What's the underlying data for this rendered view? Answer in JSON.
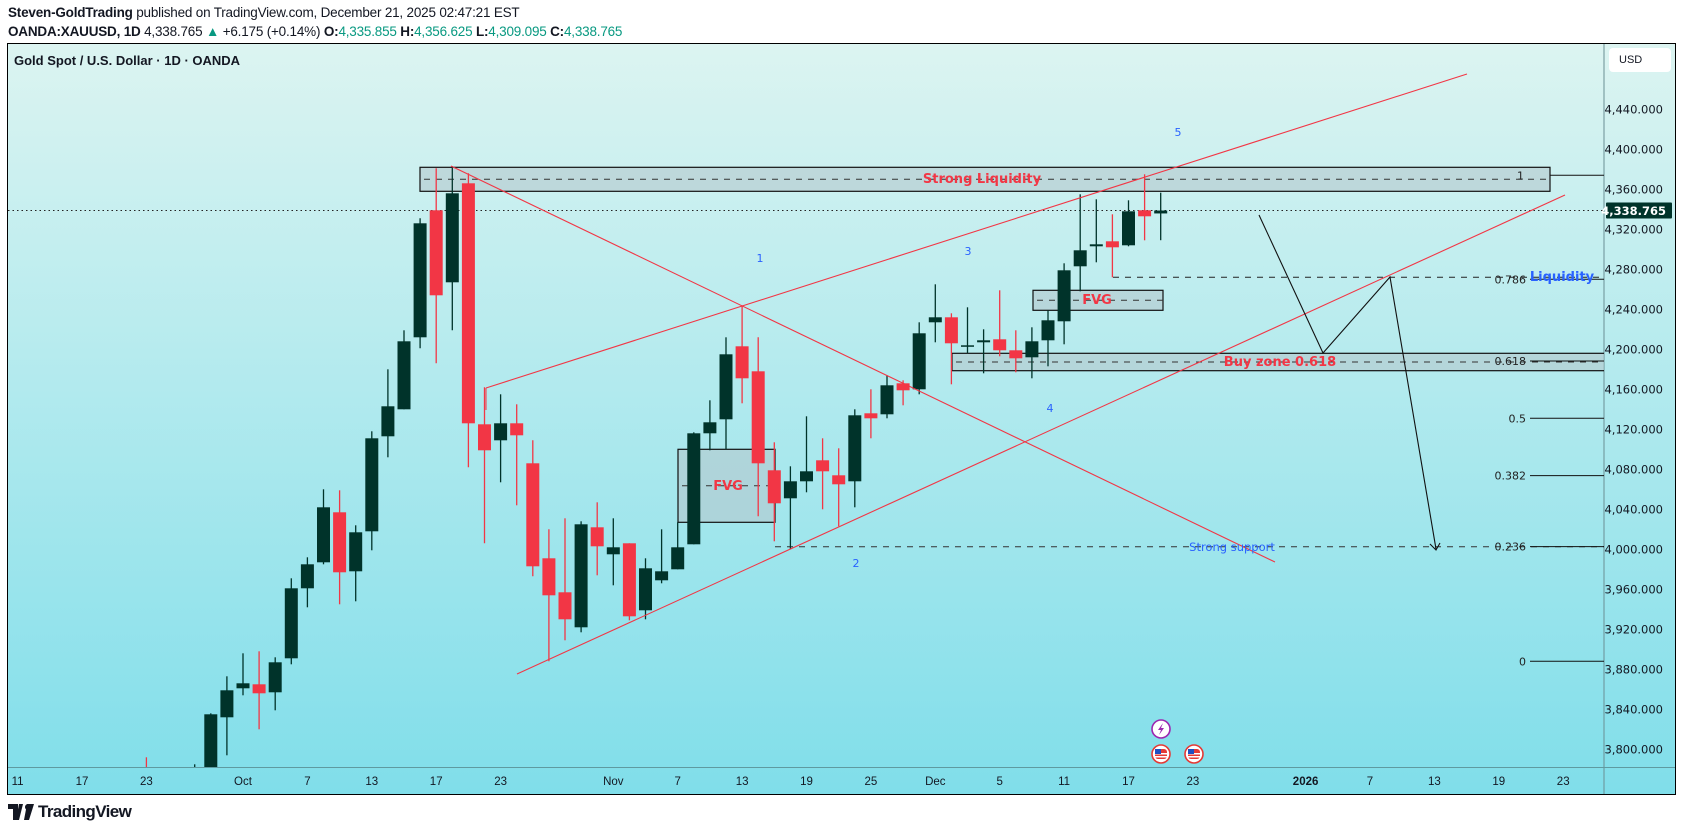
{
  "header": {
    "author": "Steven-GoldTrading",
    "published_text": " published on TradingView.com, December 21, 2025 02:47:21 EST",
    "symbol": "OANDA:XAUUSD, 1D",
    "last_price": "4,338.765",
    "change": "+6.175 (+0.14%)",
    "o_label": "O:",
    "o_value": "4,335.855",
    "h_label": "H:",
    "h_value": "4,356.625",
    "l_label": "L:",
    "l_value": "4,309.095",
    "c_label": "C:",
    "c_value": "4,338.765"
  },
  "chart_title": "Gold Spot / U.S. Dollar · 1D · OANDA",
  "currency": "USD",
  "footer": {
    "brand": "TradingView"
  },
  "colors": {
    "up": "#00332a",
    "down": "#f23645",
    "drawing_red": "#f23645",
    "label_blue": "#2962ff",
    "accent_teal": "#089981"
  },
  "annotations": {
    "strong_liquidity": "Strong Liquidity",
    "fvg_upper": "FVG",
    "fvg_lower": "FVG",
    "buy_zone": "Buy zone 0.618",
    "strong_support": "Strong support",
    "liquidity": "Liquidity",
    "waves": [
      "1",
      "2",
      "3",
      "4",
      "5"
    ]
  },
  "fib_levels": [
    "1",
    "0.786",
    "0.618",
    "0.5",
    "0.382",
    "0.236",
    "0"
  ],
  "events": [
    "lightning-event-icon",
    "us-flag-event-icon",
    "us-flag-event-icon"
  ],
  "chart_data": {
    "type": "candlestick",
    "title": "Gold Spot / U.S. Dollar · 1D · OANDA",
    "ylim": [
      3781,
      4502
    ],
    "current_price": "4,338.765",
    "y_ticks": [
      "4,440.000",
      "4,400.000",
      "4,360.000",
      "4,320.000",
      "4,280.000",
      "4,240.000",
      "4,200.000",
      "4,160.000",
      "4,120.000",
      "4,080.000",
      "4,040.000",
      "4,000.000",
      "3,960.000",
      "3,920.000",
      "3,880.000",
      "3,840.000",
      "3,800.000"
    ],
    "x_ticks": [
      {
        "label": "11",
        "date": "2025-09-11"
      },
      {
        "label": "17",
        "date": "2025-09-17"
      },
      {
        "label": "23",
        "date": "2025-09-23"
      },
      {
        "label": "Oct",
        "date": "2025-10-01"
      },
      {
        "label": "7",
        "date": "2025-10-07"
      },
      {
        "label": "13",
        "date": "2025-10-13"
      },
      {
        "label": "17",
        "date": "2025-10-17"
      },
      {
        "label": "23",
        "date": "2025-10-23"
      },
      {
        "label": "Nov",
        "date": "2025-11-03"
      },
      {
        "label": "7",
        "date": "2025-11-07"
      },
      {
        "label": "13",
        "date": "2025-11-13"
      },
      {
        "label": "19",
        "date": "2025-11-19"
      },
      {
        "label": "25",
        "date": "2025-11-25"
      },
      {
        "label": "Dec",
        "date": "2025-12-01"
      },
      {
        "label": "5",
        "date": "2025-12-05"
      },
      {
        "label": "11",
        "date": "2025-12-11"
      },
      {
        "label": "17",
        "date": "2025-12-17"
      },
      {
        "label": "23",
        "date": "2025-12-23"
      },
      {
        "label": "2026",
        "date": "2026-01-01"
      },
      {
        "label": "7",
        "date": "2026-01-07"
      },
      {
        "label": "13",
        "date": "2026-01-13"
      },
      {
        "label": "19",
        "date": "2026-01-19"
      },
      {
        "label": "23",
        "date": "2026-01-23"
      }
    ],
    "candles_columns": [
      "date",
      "open",
      "high",
      "low",
      "close"
    ],
    "candles": [
      [
        "2025-09-23",
        3770,
        3792,
        3740,
        3765
      ],
      [
        "2025-09-26",
        3760,
        3785,
        3740,
        3770
      ],
      [
        "2025-09-29",
        3775,
        3836,
        3765,
        3835
      ],
      [
        "2025-09-30",
        3832,
        3873,
        3794,
        3859
      ],
      [
        "2025-10-01",
        3861,
        3896,
        3854,
        3866
      ],
      [
        "2025-10-02",
        3865,
        3898,
        3820,
        3856
      ],
      [
        "2025-10-03",
        3857,
        3892,
        3839,
        3887
      ],
      [
        "2025-10-06",
        3891,
        3971,
        3885,
        3961
      ],
      [
        "2025-10-07",
        3961,
        3992,
        3942,
        3985
      ],
      [
        "2025-10-08",
        3987,
        4060,
        3985,
        4042
      ],
      [
        "2025-10-09",
        4037,
        4059,
        3945,
        3977
      ],
      [
        "2025-10-10",
        3978,
        4024,
        3948,
        4017
      ],
      [
        "2025-10-13",
        4018,
        4118,
        3999,
        4111
      ],
      [
        "2025-10-14",
        4113,
        4180,
        4092,
        4143
      ],
      [
        "2025-10-15",
        4140,
        4219,
        4140,
        4208
      ],
      [
        "2025-10-16",
        4212,
        4331,
        4201,
        4326
      ],
      [
        "2025-10-17",
        4339,
        4381,
        4186,
        4254
      ],
      [
        "2025-10-20",
        4267,
        4383,
        4219,
        4356
      ],
      [
        "2025-10-21",
        4366,
        4376,
        4082,
        4126
      ],
      [
        "2025-10-22",
        4125,
        4162,
        4006,
        4099
      ],
      [
        "2025-10-23",
        4109,
        4155,
        4067,
        4126
      ],
      [
        "2025-10-24",
        4126,
        4145,
        4044,
        4114
      ],
      [
        "2025-10-27",
        4086,
        4109,
        3973,
        3983
      ],
      [
        "2025-10-28",
        3991,
        4020,
        3888,
        3954
      ],
      [
        "2025-10-29",
        3957,
        4031,
        3909,
        3930
      ],
      [
        "2025-10-30",
        3922,
        4028,
        3917,
        4025
      ],
      [
        "2025-10-31",
        4022,
        4047,
        3974,
        4003
      ],
      [
        "2025-11-03",
        3995,
        4031,
        3964,
        4002
      ],
      [
        "2025-11-04",
        4006,
        4006,
        3929,
        3933
      ],
      [
        "2025-11-05",
        3939,
        3991,
        3930,
        3981
      ],
      [
        "2025-11-06",
        3969,
        4020,
        3966,
        3978
      ],
      [
        "2025-11-07",
        3980,
        4027,
        3980,
        4002
      ],
      [
        "2025-11-10",
        4005,
        4117,
        4005,
        4116
      ],
      [
        "2025-11-11",
        4116,
        4149,
        4099,
        4127
      ],
      [
        "2025-11-12",
        4130,
        4212,
        4100,
        4195
      ],
      [
        "2025-11-13",
        4203,
        4244,
        4146,
        4171
      ],
      [
        "2025-11-14",
        4178,
        4212,
        4033,
        4086
      ],
      [
        "2025-11-17",
        4079,
        4107,
        4008,
        4046
      ],
      [
        "2025-11-18",
        4051,
        4083,
        4000,
        4068
      ],
      [
        "2025-11-19",
        4068,
        4133,
        4057,
        4078
      ],
      [
        "2025-11-20",
        4089,
        4111,
        4040,
        4078
      ],
      [
        "2025-11-21",
        4074,
        4101,
        4023,
        4065
      ],
      [
        "2025-11-24",
        4068,
        4140,
        4042,
        4134
      ],
      [
        "2025-11-25",
        4136,
        4160,
        4111,
        4131
      ],
      [
        "2025-11-26",
        4135,
        4174,
        4131,
        4164
      ],
      [
        "2025-11-27",
        4166,
        4169,
        4144,
        4159
      ],
      [
        "2025-11-28",
        4160,
        4227,
        4155,
        4216
      ],
      [
        "2025-12-01",
        4227,
        4265,
        4207,
        4232
      ],
      [
        "2025-12-02",
        4232,
        4236,
        4165,
        4206
      ],
      [
        "2025-12-03",
        4203,
        4242,
        4196,
        4204
      ],
      [
        "2025-12-04",
        4207,
        4220,
        4176,
        4209
      ],
      [
        "2025-12-05",
        4210,
        4259,
        4193,
        4199
      ],
      [
        "2025-12-08",
        4199,
        4219,
        4177,
        4191
      ],
      [
        "2025-12-09",
        4192,
        4222,
        4171,
        4208
      ],
      [
        "2025-12-10",
        4209,
        4239,
        4183,
        4229
      ],
      [
        "2025-12-11",
        4228,
        4286,
        4205,
        4279
      ],
      [
        "2025-12-12",
        4283,
        4355,
        4258,
        4299
      ],
      [
        "2025-12-15",
        4303,
        4350,
        4287,
        4305
      ],
      [
        "2025-12-16",
        4308,
        4335,
        4272,
        4302
      ],
      [
        "2025-12-17",
        4304,
        4349,
        4303,
        4338
      ],
      [
        "2025-12-18",
        4339,
        4375,
        4309,
        4333
      ],
      [
        "2025-12-19",
        4335.855,
        4356.625,
        4309.095,
        4338.765
      ]
    ],
    "fib_retracement": {
      "level_0": 3888,
      "level_1": 4374
    },
    "zones": {
      "strong_liquidity": [
        4358,
        4382
      ],
      "fvg_upper": [
        4239,
        4259
      ],
      "buy_zone": [
        4178.6,
        4196
      ],
      "fvg_lower": [
        4027,
        4100
      ],
      "strong_support": 4002.6,
      "liquidity_line": 4272
    }
  }
}
